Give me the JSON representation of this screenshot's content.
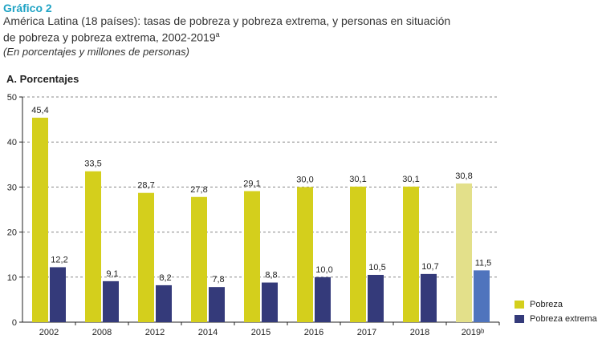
{
  "header": {
    "label": "Gráfico 2",
    "title_line1": "América Latina (18 países): tasas de pobreza y pobreza extrema, y personas en situación",
    "title_line2": "de pobreza y pobreza extrema, 2002-2019",
    "title_sup": "a",
    "subtitle": "(En porcentajes y millones de personas)"
  },
  "panel_title": "A. Porcentajes",
  "colors": {
    "pobreza": "#d4cf1c",
    "pobreza_highlight": "#e3e08a",
    "extrema": "#343a7a",
    "extrema_highlight": "#4f74bd",
    "grid": "#888888"
  },
  "chart_data": {
    "type": "bar",
    "categories": [
      "2002",
      "2008",
      "2012",
      "2014",
      "2015",
      "2016",
      "2017",
      "2018",
      "2019ᵇ"
    ],
    "series": [
      {
        "name": "Pobreza",
        "values": [
          45.4,
          33.5,
          28.7,
          27.8,
          29.1,
          30.0,
          30.1,
          30.1,
          30.8
        ],
        "labels": [
          "45,4",
          "33,5",
          "28,7",
          "27,8",
          "29,1",
          "30,0",
          "30,1",
          "30,1",
          "30,8"
        ]
      },
      {
        "name": "Pobreza extrema",
        "values": [
          12.2,
          9.1,
          8.2,
          7.8,
          8.8,
          10.0,
          10.5,
          10.7,
          11.5
        ],
        "labels": [
          "12,2",
          "9,1",
          "8,2",
          "7,8",
          "8,8",
          "10,0",
          "10,5",
          "10,7",
          "11,5"
        ]
      }
    ],
    "highlight_last": true,
    "ylim": [
      0,
      50
    ],
    "yticks": [
      0,
      10,
      20,
      30,
      40,
      50
    ],
    "grid": true,
    "legend_position": "bottom-right"
  }
}
